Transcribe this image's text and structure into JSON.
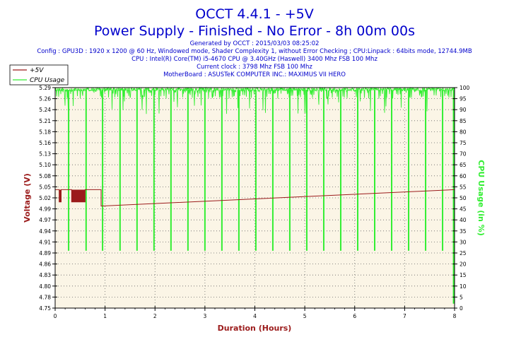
{
  "header": {
    "title": "OCCT 4.4.1 - +5V",
    "subtitle": "Power Supply - Finished - No Error - 8h 00m 00s",
    "info_lines": [
      "Generated by OCCT : 2015/03/03 08:25:02",
      "Config : GPU3D : 1920 x 1200 @ 60 Hz, Windowed mode, Shader Complexity 1, without Error Checking ; CPU:Linpack : 64bits mode, 12744.9MB",
      "CPU : Intel(R) Core(TM) i5-4670 CPU @ 3.40GHz (Haswell) 3400 Mhz FSB 100 Mhz",
      "Current clock : 3798 Mhz FSB 100 Mhz",
      "MotherBoard : ASUSTeK COMPUTER INC.: MAXIMUS VII HERO"
    ]
  },
  "colors": {
    "title": "#0000cc",
    "info": "#0000cc",
    "voltage": "#9b1b1b",
    "cpu": "#33ee33",
    "plot_bg": "#fbf5e6",
    "grid": "#666666",
    "axis": "#000000"
  },
  "chart_data": {
    "type": "line",
    "title": "OCCT 4.4.1 - +5V",
    "xlabel": "Duration (Hours)",
    "ylabel": "Voltage (V)",
    "y2label": "CPU Usage (in %)",
    "xlim": [
      0,
      8
    ],
    "ylim": [
      4.75,
      5.29
    ],
    "y2lim": [
      0,
      100
    ],
    "x_ticks": [
      "0",
      "1",
      "2",
      "3",
      "4",
      "5",
      "6",
      "7",
      "8"
    ],
    "y_ticks": [
      "4.75",
      "4.78",
      "4.80",
      "4.83",
      "4.86",
      "4.89",
      "4.91",
      "4.94",
      "4.97",
      "4.99",
      "5.02",
      "5.05",
      "5.08",
      "5.10",
      "5.13",
      "5.16",
      "5.18",
      "5.21",
      "5.24",
      "5.26",
      "5.29"
    ],
    "y2_ticks": [
      "0",
      "5",
      "10",
      "15",
      "20",
      "25",
      "30",
      "35",
      "40",
      "45",
      "50",
      "55",
      "60",
      "65",
      "70",
      "75",
      "80",
      "85",
      "90",
      "95",
      "100"
    ],
    "grid": true,
    "legend_position": "top-left",
    "series": [
      {
        "name": "+5V",
        "axis": "left",
        "baseline": 5.04,
        "x": [
          0,
          0.08,
          0.08,
          0.12,
          0.12,
          0.33,
          0.33,
          0.6,
          0.6,
          0.92,
          0.92,
          8
        ],
        "y": [
          5.04,
          5.04,
          5.01,
          5.01,
          5.04,
          5.04,
          5.01,
          5.01,
          5.04,
          5.04,
          5.0,
          5.04
        ],
        "dense_oscillation_ranges": [
          [
            0.08,
            0.12
          ],
          [
            0.33,
            0.6
          ]
        ],
        "oscillation_range": [
          5.01,
          5.04
        ]
      },
      {
        "name": "CPU Usage",
        "axis": "right",
        "baseline": 99,
        "dips": [
          {
            "x": 0.27,
            "y": 26
          },
          {
            "x": 0.62,
            "y": 26
          },
          {
            "x": 0.95,
            "y": 26
          },
          {
            "x": 1.3,
            "y": 26
          },
          {
            "x": 1.64,
            "y": 26
          },
          {
            "x": 1.98,
            "y": 26
          },
          {
            "x": 2.32,
            "y": 26
          },
          {
            "x": 2.66,
            "y": 26
          },
          {
            "x": 3.0,
            "y": 26
          },
          {
            "x": 3.34,
            "y": 26
          },
          {
            "x": 3.68,
            "y": 26
          },
          {
            "x": 4.02,
            "y": 26
          },
          {
            "x": 4.36,
            "y": 26
          },
          {
            "x": 4.7,
            "y": 26
          },
          {
            "x": 5.04,
            "y": 26
          },
          {
            "x": 5.38,
            "y": 26
          },
          {
            "x": 5.72,
            "y": 26
          },
          {
            "x": 6.06,
            "y": 26
          },
          {
            "x": 6.4,
            "y": 26
          },
          {
            "x": 6.74,
            "y": 26
          },
          {
            "x": 7.08,
            "y": 26
          },
          {
            "x": 7.42,
            "y": 26
          },
          {
            "x": 7.76,
            "y": 26
          },
          {
            "x": 7.98,
            "y": 2
          }
        ],
        "dense_noise_range": [
          95,
          100
        ]
      }
    ]
  }
}
